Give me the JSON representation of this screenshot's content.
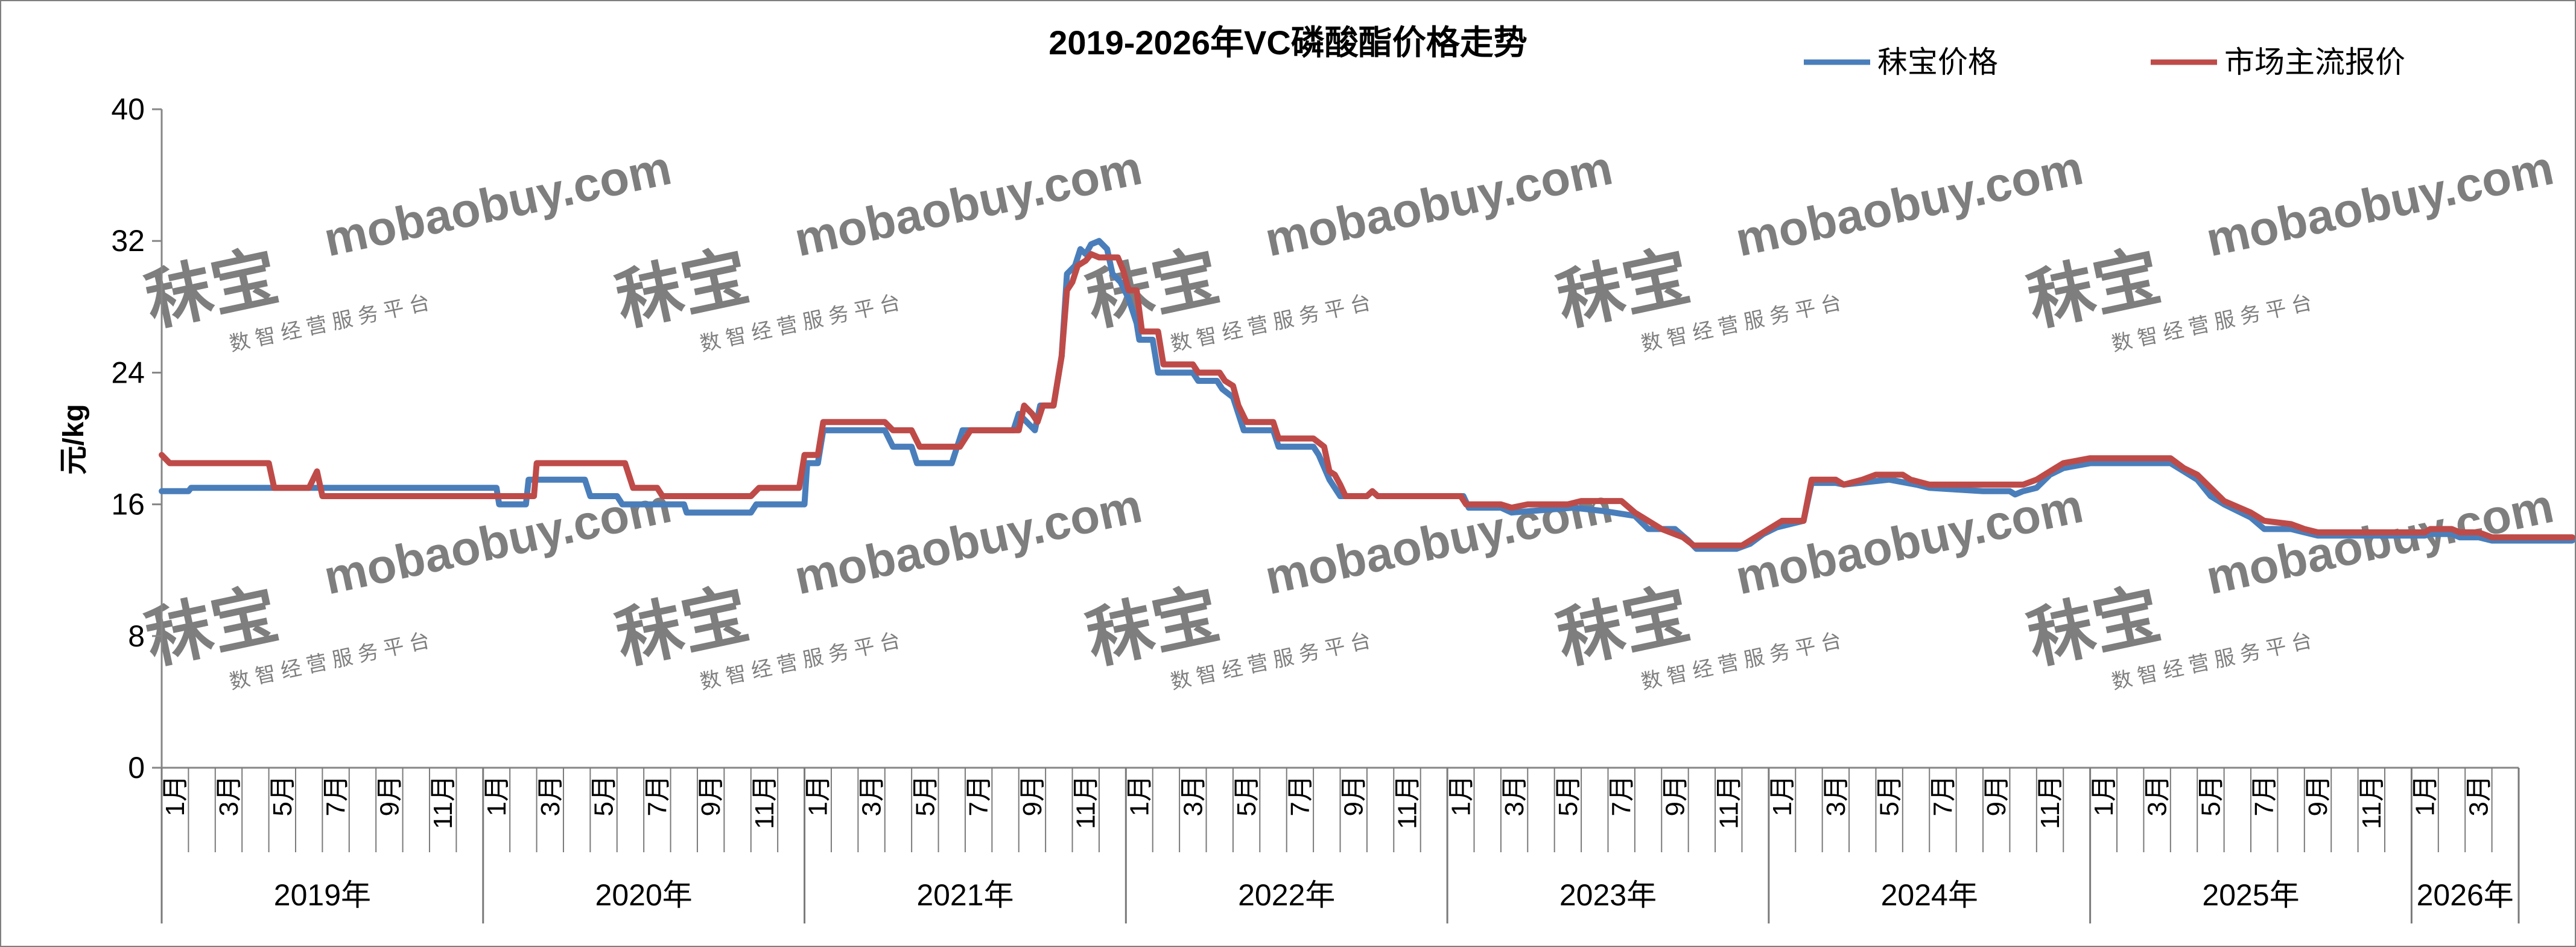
{
  "chart_data": {
    "type": "line",
    "title": "2019-2026年VC磷酸酯价格走势",
    "ylabel": "元/kg",
    "ylim": [
      0,
      40
    ],
    "yticks": [
      0,
      8,
      16,
      24,
      32,
      40
    ],
    "legend_position": "top-right",
    "watermark": {
      "brand": "秣宝",
      "domain": "mobaobuy.com",
      "tagline": "数 智 经 营 服 务 平 台"
    },
    "years": [
      {
        "label": "2019年",
        "months": 12
      },
      {
        "label": "2020年",
        "months": 12
      },
      {
        "label": "2021年",
        "months": 12
      },
      {
        "label": "2022年",
        "months": 12
      },
      {
        "label": "2023年",
        "months": 12
      },
      {
        "label": "2024年",
        "months": 12
      },
      {
        "label": "2025年",
        "months": 12
      },
      {
        "label": "2026年",
        "months": 4
      }
    ],
    "month_labels": [
      "1月",
      "3月",
      "5月",
      "7月",
      "9月",
      "11月"
    ],
    "series": [
      {
        "name": "秣宝价格",
        "color": "#4a7ebb",
        "points": [
          [
            0,
            16.8
          ],
          [
            1.0,
            16.8
          ],
          [
            1.1,
            17.0
          ],
          [
            3.2,
            17.0
          ],
          [
            3.3,
            17.0
          ],
          [
            12.5,
            17.0
          ],
          [
            12.6,
            16.0
          ],
          [
            13.6,
            16.0
          ],
          [
            13.7,
            17.5
          ],
          [
            15.8,
            17.5
          ],
          [
            16.0,
            16.5
          ],
          [
            17.0,
            16.5
          ],
          [
            17.2,
            16.0
          ],
          [
            19.5,
            16.0
          ],
          [
            19.6,
            15.5
          ],
          [
            22.0,
            15.5
          ],
          [
            22.2,
            16.0
          ],
          [
            24.0,
            16.0
          ],
          [
            24.1,
            18.5
          ],
          [
            24.5,
            18.5
          ],
          [
            24.7,
            20.5
          ],
          [
            27.0,
            20.5
          ],
          [
            27.3,
            19.5
          ],
          [
            28.0,
            19.5
          ],
          [
            28.2,
            18.5
          ],
          [
            29.5,
            18.5
          ],
          [
            29.9,
            20.5
          ],
          [
            31.8,
            20.5
          ],
          [
            32.0,
            21.5
          ],
          [
            32.3,
            21.0
          ],
          [
            32.6,
            20.5
          ],
          [
            32.8,
            22.0
          ],
          [
            33.3,
            22.0
          ],
          [
            33.6,
            25.0
          ],
          [
            33.8,
            30.0
          ],
          [
            34.1,
            30.5
          ],
          [
            34.3,
            31.5
          ],
          [
            34.5,
            31.2
          ],
          [
            34.7,
            31.8
          ],
          [
            35.0,
            32.0
          ],
          [
            35.3,
            31.5
          ],
          [
            35.5,
            30.0
          ],
          [
            35.8,
            29.5
          ],
          [
            36.1,
            28.5
          ],
          [
            36.4,
            27.0
          ],
          [
            36.5,
            26.0
          ],
          [
            37.0,
            26.0
          ],
          [
            37.2,
            24.0
          ],
          [
            38.5,
            24.0
          ],
          [
            38.7,
            23.5
          ],
          [
            39.4,
            23.5
          ],
          [
            39.6,
            23.0
          ],
          [
            40.0,
            22.5
          ],
          [
            40.2,
            21.5
          ],
          [
            40.4,
            20.5
          ],
          [
            41.5,
            20.5
          ],
          [
            41.7,
            19.5
          ],
          [
            43.0,
            19.5
          ],
          [
            43.2,
            19.0
          ],
          [
            43.6,
            17.5
          ],
          [
            44.0,
            16.5
          ],
          [
            45.0,
            16.5
          ],
          [
            45.2,
            16.8
          ],
          [
            45.4,
            16.5
          ],
          [
            48.6,
            16.5
          ],
          [
            48.8,
            15.8
          ],
          [
            50.0,
            15.8
          ],
          [
            50.4,
            15.5
          ],
          [
            52.7,
            15.8
          ],
          [
            53.8,
            15.6
          ],
          [
            55.0,
            15.3
          ],
          [
            55.5,
            14.5
          ],
          [
            56.5,
            14.5
          ],
          [
            57.0,
            13.8
          ],
          [
            57.3,
            13.3
          ],
          [
            58.8,
            13.3
          ],
          [
            59.3,
            13.6
          ],
          [
            59.8,
            14.2
          ],
          [
            60.3,
            14.6
          ],
          [
            61.3,
            15.0
          ],
          [
            61.6,
            17.3
          ],
          [
            62.5,
            17.3
          ],
          [
            62.8,
            17.2
          ],
          [
            64.5,
            17.5
          ],
          [
            65.5,
            17.2
          ],
          [
            66.0,
            17.0
          ],
          [
            68.0,
            16.8
          ],
          [
            69.0,
            16.8
          ],
          [
            69.2,
            16.6
          ],
          [
            69.5,
            16.8
          ],
          [
            70.0,
            17.0
          ],
          [
            70.5,
            17.8
          ],
          [
            71.0,
            18.2
          ],
          [
            72.0,
            18.5
          ],
          [
            75.0,
            18.5
          ],
          [
            75.5,
            18.0
          ],
          [
            76.0,
            17.5
          ],
          [
            76.5,
            16.5
          ],
          [
            77.0,
            16.0
          ],
          [
            78.0,
            15.2
          ],
          [
            78.5,
            14.5
          ],
          [
            79.5,
            14.5
          ],
          [
            80.0,
            14.3
          ],
          [
            80.5,
            14.1
          ],
          [
            84.5,
            14.1
          ],
          [
            84.7,
            14.2
          ],
          [
            85.5,
            14.2
          ],
          [
            85.8,
            14.0
          ],
          [
            86.5,
            14.0
          ],
          [
            87.0,
            13.8
          ],
          [
            88.0,
            13.8
          ],
          [
            89.0,
            13.8
          ],
          [
            90.0,
            13.8
          ]
        ]
      },
      {
        "name": "市场主流报价",
        "color": "#be4b48",
        "points": [
          [
            0,
            19.0
          ],
          [
            0.3,
            18.5
          ],
          [
            2.5,
            18.5
          ],
          [
            4.0,
            18.5
          ],
          [
            4.2,
            17.0
          ],
          [
            5.5,
            17.0
          ],
          [
            5.8,
            18.0
          ],
          [
            6.0,
            16.5
          ],
          [
            12.5,
            16.5
          ],
          [
            12.6,
            16.5
          ],
          [
            13.9,
            16.5
          ],
          [
            14.0,
            18.5
          ],
          [
            17.3,
            18.5
          ],
          [
            17.6,
            17.0
          ],
          [
            18.5,
            17.0
          ],
          [
            18.7,
            16.5
          ],
          [
            22.0,
            16.5
          ],
          [
            22.3,
            17.0
          ],
          [
            23.5,
            17.0
          ],
          [
            23.8,
            17.0
          ],
          [
            24.0,
            19.0
          ],
          [
            24.5,
            19.0
          ],
          [
            24.7,
            21.0
          ],
          [
            27.0,
            21.0
          ],
          [
            27.3,
            20.5
          ],
          [
            28.0,
            20.5
          ],
          [
            28.3,
            19.5
          ],
          [
            29.8,
            19.5
          ],
          [
            30.0,
            20.0
          ],
          [
            30.2,
            20.5
          ],
          [
            32.0,
            20.5
          ],
          [
            32.2,
            22.0
          ],
          [
            32.5,
            21.5
          ],
          [
            32.7,
            21.0
          ],
          [
            32.9,
            22.0
          ],
          [
            33.3,
            22.0
          ],
          [
            33.6,
            25.0
          ],
          [
            33.8,
            29.0
          ],
          [
            34.0,
            29.5
          ],
          [
            34.2,
            30.5
          ],
          [
            34.5,
            30.8
          ],
          [
            34.7,
            31.2
          ],
          [
            35.0,
            31.0
          ],
          [
            35.3,
            31.0
          ],
          [
            35.7,
            31.0
          ],
          [
            35.9,
            30.2
          ],
          [
            36.1,
            29.0
          ],
          [
            36.4,
            29.0
          ],
          [
            36.6,
            26.5
          ],
          [
            37.2,
            26.5
          ],
          [
            37.4,
            24.5
          ],
          [
            38.5,
            24.5
          ],
          [
            38.7,
            24.0
          ],
          [
            39.5,
            24.0
          ],
          [
            39.7,
            23.5
          ],
          [
            40.0,
            23.2
          ],
          [
            40.2,
            22.0
          ],
          [
            40.5,
            21.0
          ],
          [
            41.5,
            21.0
          ],
          [
            41.7,
            20.0
          ],
          [
            43.0,
            20.0
          ],
          [
            43.4,
            19.5
          ],
          [
            43.6,
            18.0
          ],
          [
            43.8,
            17.8
          ],
          [
            44.0,
            17.2
          ],
          [
            44.2,
            16.5
          ],
          [
            45.0,
            16.5
          ],
          [
            45.2,
            16.8
          ],
          [
            45.4,
            16.5
          ],
          [
            48.5,
            16.5
          ],
          [
            48.7,
            16.0
          ],
          [
            50.0,
            16.0
          ],
          [
            50.4,
            15.8
          ],
          [
            51.0,
            16.0
          ],
          [
            52.5,
            16.0
          ],
          [
            53.0,
            16.2
          ],
          [
            54.5,
            16.2
          ],
          [
            55.0,
            15.5
          ],
          [
            55.5,
            15.0
          ],
          [
            56.0,
            14.5
          ],
          [
            56.8,
            14.0
          ],
          [
            57.2,
            13.5
          ],
          [
            59.0,
            13.5
          ],
          [
            59.5,
            14.0
          ],
          [
            60.0,
            14.5
          ],
          [
            60.5,
            15.0
          ],
          [
            61.3,
            15.0
          ],
          [
            61.6,
            17.5
          ],
          [
            62.5,
            17.5
          ],
          [
            62.8,
            17.2
          ],
          [
            63.5,
            17.5
          ],
          [
            64.0,
            17.8
          ],
          [
            65.0,
            17.8
          ],
          [
            65.3,
            17.5
          ],
          [
            66.0,
            17.2
          ],
          [
            69.5,
            17.2
          ],
          [
            70.0,
            17.5
          ],
          [
            70.5,
            18.0
          ],
          [
            71.0,
            18.5
          ],
          [
            72.0,
            18.8
          ],
          [
            75.0,
            18.8
          ],
          [
            75.5,
            18.2
          ],
          [
            76.0,
            17.8
          ],
          [
            76.5,
            17.0
          ],
          [
            77.0,
            16.2
          ],
          [
            78.0,
            15.5
          ],
          [
            78.5,
            15.0
          ],
          [
            79.5,
            14.8
          ],
          [
            80.0,
            14.5
          ],
          [
            80.5,
            14.3
          ],
          [
            84.5,
            14.3
          ],
          [
            84.7,
            14.5
          ],
          [
            85.5,
            14.5
          ],
          [
            85.8,
            14.3
          ],
          [
            86.5,
            14.3
          ],
          [
            87.0,
            14.0
          ],
          [
            88.0,
            14.0
          ],
          [
            89.0,
            14.0
          ],
          [
            90.0,
            14.0
          ]
        ]
      }
    ]
  }
}
